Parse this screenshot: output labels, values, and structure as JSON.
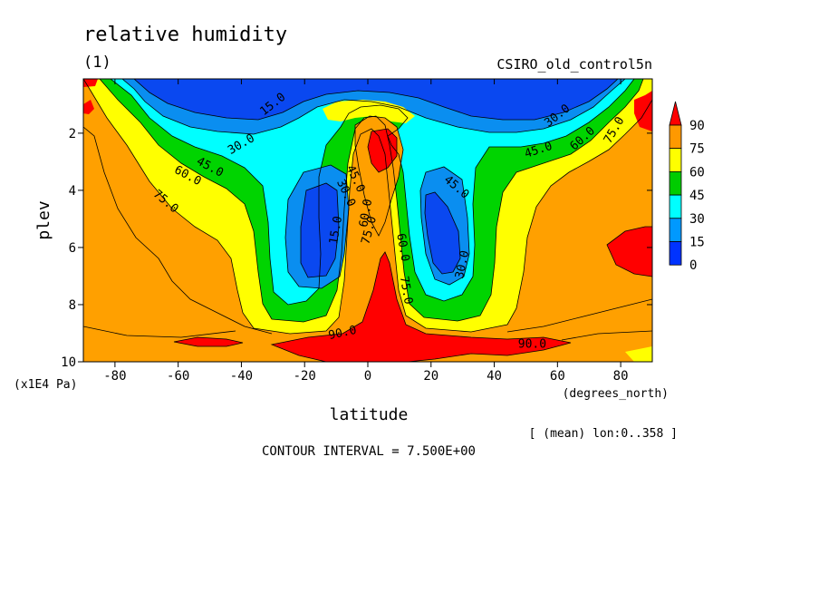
{
  "chart_data": {
    "type": "contour",
    "title": "relative humidity",
    "subtitle": "(1)",
    "dataset": "CSIRO_old_control5n",
    "xlabel": "latitude",
    "x_units": "(degrees_north)",
    "ylabel": "plev",
    "y_units": "(x1E4 Pa)",
    "xlim": [
      -90,
      90
    ],
    "ylim": [
      10,
      0.1
    ],
    "x_ticks": [
      -80,
      -60,
      -40,
      -20,
      0,
      20,
      40,
      60,
      80
    ],
    "x_tick_labels": [
      "-80",
      "-60",
      "-40",
      "-20",
      "0",
      "20",
      "40",
      "60",
      "80"
    ],
    "y_ticks": [
      2,
      4,
      6,
      8,
      10
    ],
    "y_tick_labels": [
      "2",
      "4",
      "6",
      "8",
      "10"
    ],
    "averaging_note": "[ (mean) lon:0..358 ]",
    "contour_interval_text": "CONTOUR INTERVAL = 7.500E+00",
    "legend": {
      "levels": [
        "90",
        "75",
        "60",
        "45",
        "30",
        "15",
        "0"
      ],
      "colors": [
        "#ff0000",
        "#ff9900",
        "#ffff00",
        "#00cc00",
        "#00ffff",
        "#0099ff",
        "#0033ff"
      ]
    },
    "fill_colors": {
      "lt15": "#0a48f0",
      "c15_30": "#0a8ef0",
      "c30_45": "#00ffff",
      "c45_60": "#00d400",
      "c60_75": "#ffff00",
      "c75_90": "#ffa000",
      "gt90": "#ff0000"
    },
    "contour_labels": [
      {
        "text": "15.0",
        "lat": -30,
        "p": 1.0,
        "angle": -38
      },
      {
        "text": "30.0",
        "lat": -40,
        "p": 2.4,
        "angle": -30
      },
      {
        "text": "45.0",
        "lat": -50,
        "p": 3.2,
        "angle": 28
      },
      {
        "text": "60.0",
        "lat": -57,
        "p": 3.5,
        "angle": 28
      },
      {
        "text": "75.0",
        "lat": -64,
        "p": 4.4,
        "angle": 40
      },
      {
        "text": "30.0",
        "lat": 60,
        "p": 1.4,
        "angle": -38
      },
      {
        "text": "45.0",
        "lat": 54,
        "p": 2.6,
        "angle": -18
      },
      {
        "text": "60.0",
        "lat": 68,
        "p": 2.2,
        "angle": -42
      },
      {
        "text": "75.0",
        "lat": 78,
        "p": 1.9,
        "angle": -60
      },
      {
        "text": "15.0",
        "lat": -10,
        "p": 5.4,
        "angle": -80
      },
      {
        "text": "30.0",
        "lat": -7,
        "p": 4.1,
        "angle": 65
      },
      {
        "text": "45.0",
        "lat": -4,
        "p": 3.6,
        "angle": 65
      },
      {
        "text": "60.0",
        "lat": -0.5,
        "p": 4.8,
        "angle": -80
      },
      {
        "text": "75.0",
        "lat": 0.5,
        "p": 5.4,
        "angle": -75
      },
      {
        "text": "45.0",
        "lat": 28,
        "p": 3.9,
        "angle": 40
      },
      {
        "text": "30.0",
        "lat": 30,
        "p": 6.6,
        "angle": -78
      },
      {
        "text": "60.0",
        "lat": 11,
        "p": 6.0,
        "angle": 80
      },
      {
        "text": "75.0",
        "lat": 12,
        "p": 7.5,
        "angle": 80
      },
      {
        "text": "90.0",
        "lat": -8,
        "p": 9.0,
        "angle": -12
      },
      {
        "text": "90.0",
        "lat": 52,
        "p": 9.4,
        "angle": 0
      }
    ]
  }
}
